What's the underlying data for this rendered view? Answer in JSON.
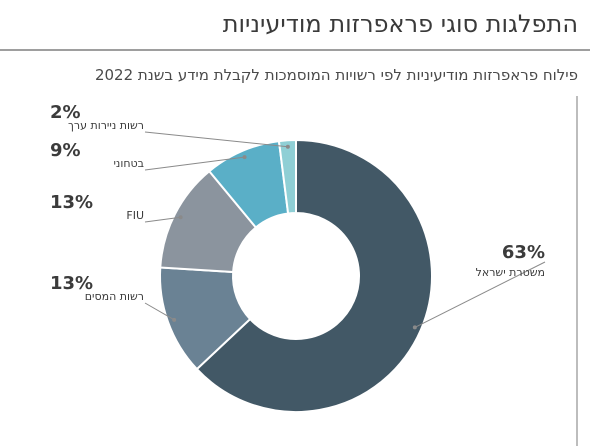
{
  "header": {
    "title": "התפלגות סוגי פראפרזות מודיעיניות",
    "subtitle": "פילוח פראפרזות מודיעיניות לפי רשויות המוסמכות לקבלת מידע בשנת 2022"
  },
  "chart_data": {
    "type": "pie",
    "donut": true,
    "title": "התפלגות סוגי פראפרזות מודיעיניות",
    "subtitle": "פילוח פראפרזות מודיעיניות לפי רשויות המוסמכות לקבלת מידע בשנת 2022",
    "unit": "%",
    "slices": [
      {
        "label": "משטרת ישראל",
        "value": 63,
        "display": "63%",
        "color": "#425866"
      },
      {
        "label": "רשות המסים",
        "value": 13,
        "display": "13%",
        "color": "#6a8294"
      },
      {
        "label": "FIU",
        "value": 13,
        "display": "13%",
        "color": "#8b949e"
      },
      {
        "label": "בטחוני",
        "value": 9,
        "display": "9%",
        "color": "#5aafc7"
      },
      {
        "label": "רשות ניירות ערך",
        "value": 2,
        "display": "2%",
        "color": "#8fcfd5"
      }
    ]
  }
}
